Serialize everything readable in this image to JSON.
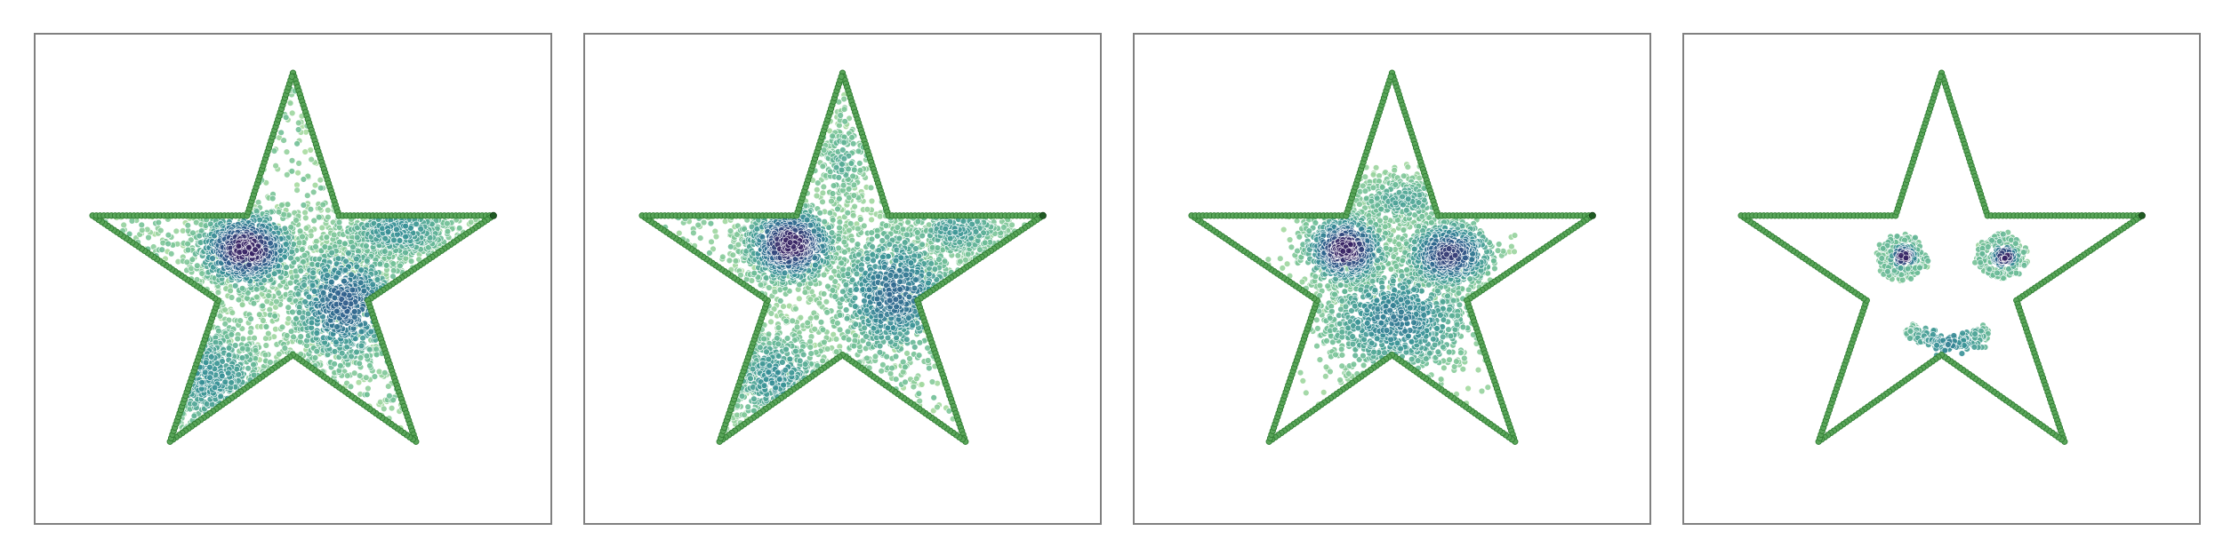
{
  "figure": {
    "background": "#ffffff",
    "frame_color": "#808080"
  },
  "chart_data": [
    {
      "type": "scatter",
      "title": "",
      "xlabel": "",
      "ylabel": "",
      "xlim": [
        0,
        1
      ],
      "ylim": [
        0,
        1
      ],
      "axes_visible": false,
      "grid": false,
      "legend": "none",
      "boundary": {
        "shape": "star",
        "vertices": [
          [
            0.5,
            0.92
          ],
          [
            0.589,
            0.629
          ],
          [
            0.888,
            0.629
          ],
          [
            0.645,
            0.456
          ],
          [
            0.738,
            0.168
          ],
          [
            0.5,
            0.345
          ],
          [
            0.262,
            0.168
          ],
          [
            0.355,
            0.456
          ],
          [
            0.112,
            0.629
          ],
          [
            0.411,
            0.629
          ]
        ],
        "marker_color": "#5aa55a",
        "marker_edge_color": "#2f7d32"
      },
      "colormap": "viridis_r",
      "point_count": 3200,
      "clusters": [
        {
          "kind": "gaussian",
          "center": [
            0.41,
            0.56
          ],
          "spread": [
            0.055,
            0.045
          ],
          "weight": 0.24,
          "density": 1.0
        },
        {
          "kind": "gaussian",
          "center": [
            0.6,
            0.45
          ],
          "spread": [
            0.065,
            0.075
          ],
          "weight": 0.26,
          "density": 0.7
        },
        {
          "kind": "gaussian",
          "center": [
            0.34,
            0.3
          ],
          "spread": [
            0.07,
            0.07
          ],
          "weight": 0.14,
          "density": 0.45
        },
        {
          "kind": "gaussian",
          "center": [
            0.7,
            0.6
          ],
          "spread": [
            0.07,
            0.04
          ],
          "weight": 0.14,
          "density": 0.45
        },
        {
          "kind": "uniform",
          "weight": 0.22,
          "density": 0.25
        }
      ]
    },
    {
      "type": "scatter",
      "title": "",
      "xlabel": "",
      "ylabel": "",
      "xlim": [
        0,
        1
      ],
      "ylim": [
        0,
        1
      ],
      "axes_visible": false,
      "grid": false,
      "legend": "none",
      "boundary": {
        "shape": "star",
        "vertices": [
          [
            0.5,
            0.92
          ],
          [
            0.589,
            0.629
          ],
          [
            0.888,
            0.629
          ],
          [
            0.645,
            0.456
          ],
          [
            0.738,
            0.168
          ],
          [
            0.5,
            0.345
          ],
          [
            0.262,
            0.168
          ],
          [
            0.355,
            0.456
          ],
          [
            0.112,
            0.629
          ],
          [
            0.411,
            0.629
          ]
        ],
        "marker_color": "#5aa55a",
        "marker_edge_color": "#2f7d32"
      },
      "colormap": "viridis_r",
      "point_count": 3000,
      "clusters": [
        {
          "kind": "gaussian",
          "center": [
            0.4,
            0.57
          ],
          "spread": [
            0.05,
            0.045
          ],
          "weight": 0.25,
          "density": 1.0
        },
        {
          "kind": "gaussian",
          "center": [
            0.6,
            0.47
          ],
          "spread": [
            0.07,
            0.08
          ],
          "weight": 0.27,
          "density": 0.65
        },
        {
          "kind": "gaussian",
          "center": [
            0.37,
            0.3
          ],
          "spread": [
            0.06,
            0.06
          ],
          "weight": 0.13,
          "density": 0.45
        },
        {
          "kind": "gaussian",
          "center": [
            0.72,
            0.6
          ],
          "spread": [
            0.06,
            0.035
          ],
          "weight": 0.12,
          "density": 0.4
        },
        {
          "kind": "gaussian",
          "center": [
            0.5,
            0.74
          ],
          "spread": [
            0.03,
            0.05
          ],
          "weight": 0.05,
          "density": 0.3
        },
        {
          "kind": "uniform",
          "weight": 0.18,
          "density": 0.25
        }
      ]
    },
    {
      "type": "scatter",
      "title": "",
      "xlabel": "",
      "ylabel": "",
      "xlim": [
        0,
        1
      ],
      "ylim": [
        0,
        1
      ],
      "axes_visible": false,
      "grid": false,
      "legend": "none",
      "boundary": {
        "shape": "star",
        "vertices": [
          [
            0.5,
            0.92
          ],
          [
            0.589,
            0.629
          ],
          [
            0.888,
            0.629
          ],
          [
            0.645,
            0.456
          ],
          [
            0.738,
            0.168
          ],
          [
            0.5,
            0.345
          ],
          [
            0.262,
            0.168
          ],
          [
            0.355,
            0.456
          ],
          [
            0.112,
            0.629
          ],
          [
            0.411,
            0.629
          ]
        ],
        "marker_color": "#5aa55a",
        "marker_edge_color": "#2f7d32"
      },
      "colormap": "viridis_r",
      "point_count": 2600,
      "clusters": [
        {
          "kind": "gaussian",
          "center": [
            0.41,
            0.56
          ],
          "spread": [
            0.045,
            0.04
          ],
          "weight": 0.26,
          "density": 1.0
        },
        {
          "kind": "gaussian",
          "center": [
            0.61,
            0.55
          ],
          "spread": [
            0.05,
            0.04
          ],
          "weight": 0.26,
          "density": 0.85
        },
        {
          "kind": "gaussian",
          "center": [
            0.51,
            0.42
          ],
          "spread": [
            0.09,
            0.07
          ],
          "weight": 0.36,
          "density": 0.55
        },
        {
          "kind": "gaussian",
          "center": [
            0.52,
            0.66
          ],
          "spread": [
            0.06,
            0.03
          ],
          "weight": 0.12,
          "density": 0.35
        }
      ]
    },
    {
      "type": "scatter",
      "title": "",
      "xlabel": "",
      "ylabel": "",
      "xlim": [
        0,
        1
      ],
      "ylim": [
        0,
        1
      ],
      "axes_visible": false,
      "grid": false,
      "legend": "none",
      "boundary": {
        "shape": "star",
        "vertices": [
          [
            0.5,
            0.92
          ],
          [
            0.589,
            0.629
          ],
          [
            0.888,
            0.629
          ],
          [
            0.645,
            0.456
          ],
          [
            0.738,
            0.168
          ],
          [
            0.5,
            0.345
          ],
          [
            0.262,
            0.168
          ],
          [
            0.355,
            0.456
          ],
          [
            0.112,
            0.629
          ],
          [
            0.411,
            0.629
          ]
        ],
        "marker_color": "#5aa55a",
        "marker_edge_color": "#2f7d32"
      },
      "colormap": "viridis_r",
      "point_count": 700,
      "clusters": [
        {
          "kind": "ring",
          "center": [
            0.42,
            0.545
          ],
          "radius": 0.038,
          "spread": 0.006,
          "weight": 0.2,
          "density": 0.3
        },
        {
          "kind": "gaussian",
          "center": [
            0.427,
            0.545
          ],
          "spread": [
            0.016,
            0.016
          ],
          "weight": 0.13,
          "density": 1.0
        },
        {
          "kind": "ring",
          "center": [
            0.615,
            0.545
          ],
          "radius": 0.038,
          "spread": 0.006,
          "weight": 0.2,
          "density": 0.3
        },
        {
          "kind": "gaussian",
          "center": [
            0.622,
            0.545
          ],
          "spread": [
            0.016,
            0.016
          ],
          "weight": 0.13,
          "density": 1.0
        },
        {
          "kind": "arc",
          "center": [
            0.52,
            0.52
          ],
          "radius": 0.15,
          "from_deg": 235,
          "to_deg": 300,
          "spread": 0.009,
          "weight": 0.34,
          "density": 0.5
        }
      ]
    }
  ]
}
